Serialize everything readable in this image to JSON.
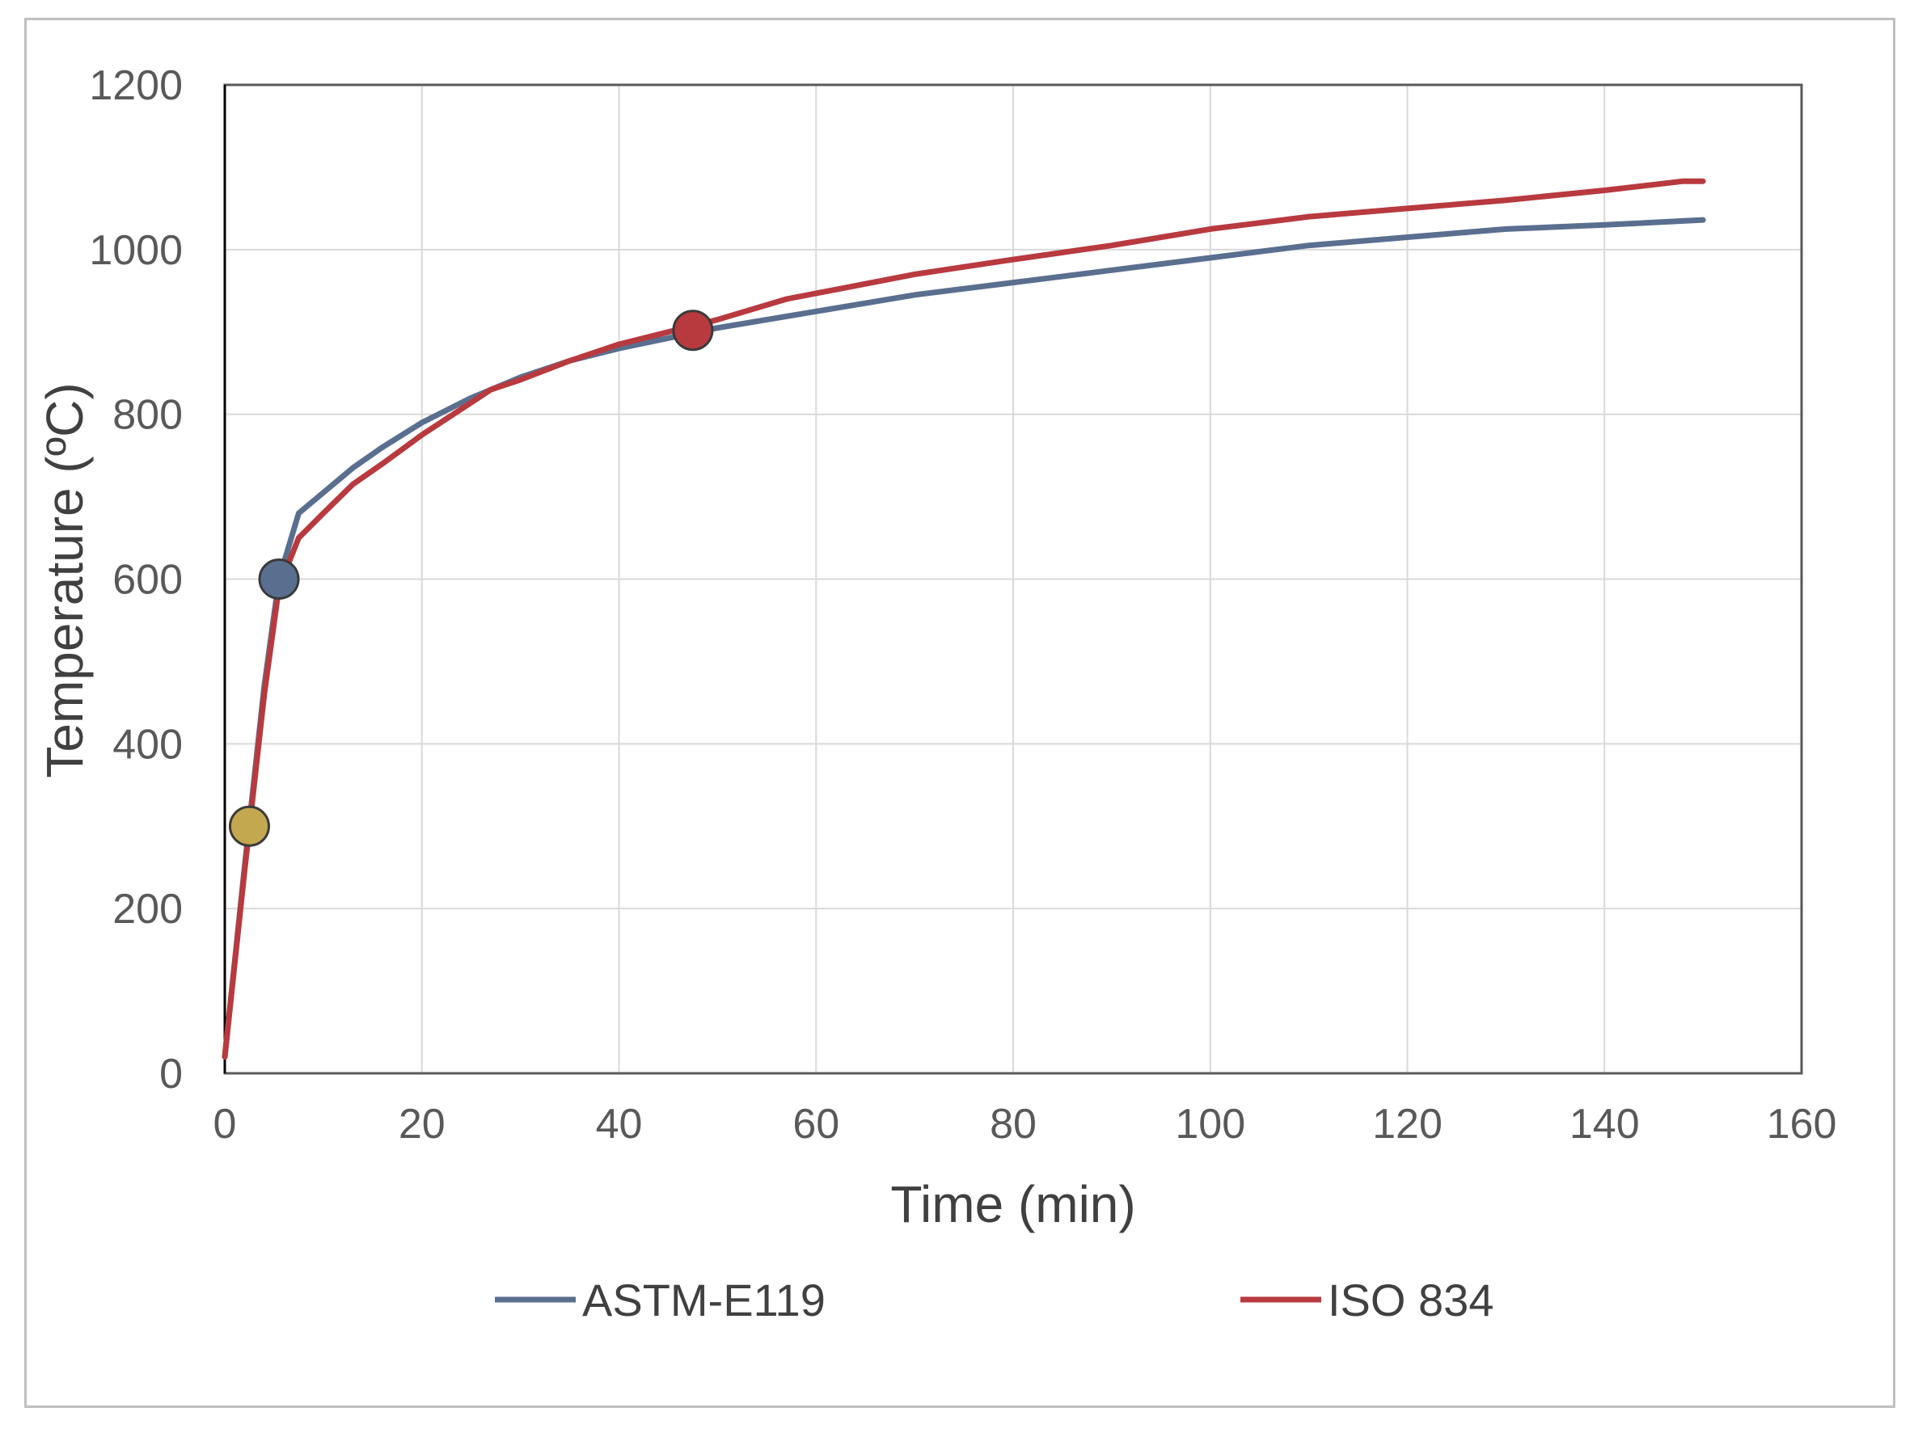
{
  "chart_data": {
    "type": "line",
    "xlabel": "Time (min)",
    "ylabel": "Temperature (ºC)",
    "xlim": [
      0,
      160
    ],
    "ylim": [
      0,
      1200
    ],
    "x_ticks": [
      0,
      20,
      40,
      60,
      80,
      100,
      120,
      140,
      160
    ],
    "y_ticks": [
      0,
      200,
      400,
      600,
      800,
      1000,
      1200
    ],
    "grid": true,
    "legend_position": "bottom",
    "series": [
      {
        "name": "ASTM-E119",
        "color": "#5a6f8f",
        "x": [
          0,
          2,
          4,
          5.5,
          7.5,
          10,
          13,
          16,
          20,
          25,
          30,
          35,
          40,
          50,
          60,
          70,
          80,
          90,
          100,
          110,
          120,
          130,
          140,
          150
        ],
        "y": [
          20,
          250,
          470,
          600,
          680,
          705,
          735,
          760,
          790,
          820,
          845,
          865,
          880,
          905,
          925,
          945,
          960,
          975,
          990,
          1005,
          1015,
          1025,
          1030,
          1036
        ]
      },
      {
        "name": "ISO 834",
        "color": "#b83a3f",
        "x": [
          0,
          2,
          4,
          5.5,
          7.5,
          10,
          13,
          16,
          20,
          27,
          30,
          35,
          40,
          45,
          50,
          57,
          70,
          80,
          90,
          100,
          110,
          120,
          130,
          140,
          148,
          150
        ],
        "y": [
          20,
          245,
          460,
          590,
          650,
          680,
          715,
          740,
          775,
          830,
          842,
          865,
          885,
          900,
          915,
          940,
          970,
          988,
          1005,
          1025,
          1040,
          1050,
          1060,
          1072,
          1083,
          1083
        ]
      }
    ],
    "markers": [
      {
        "x": 2.5,
        "y": 300,
        "color": "#c4a84f"
      },
      {
        "x": 5.5,
        "y": 600,
        "color": "#5a6f8f"
      },
      {
        "x": 47.5,
        "y": 902,
        "color": "#b83a3f"
      }
    ]
  }
}
